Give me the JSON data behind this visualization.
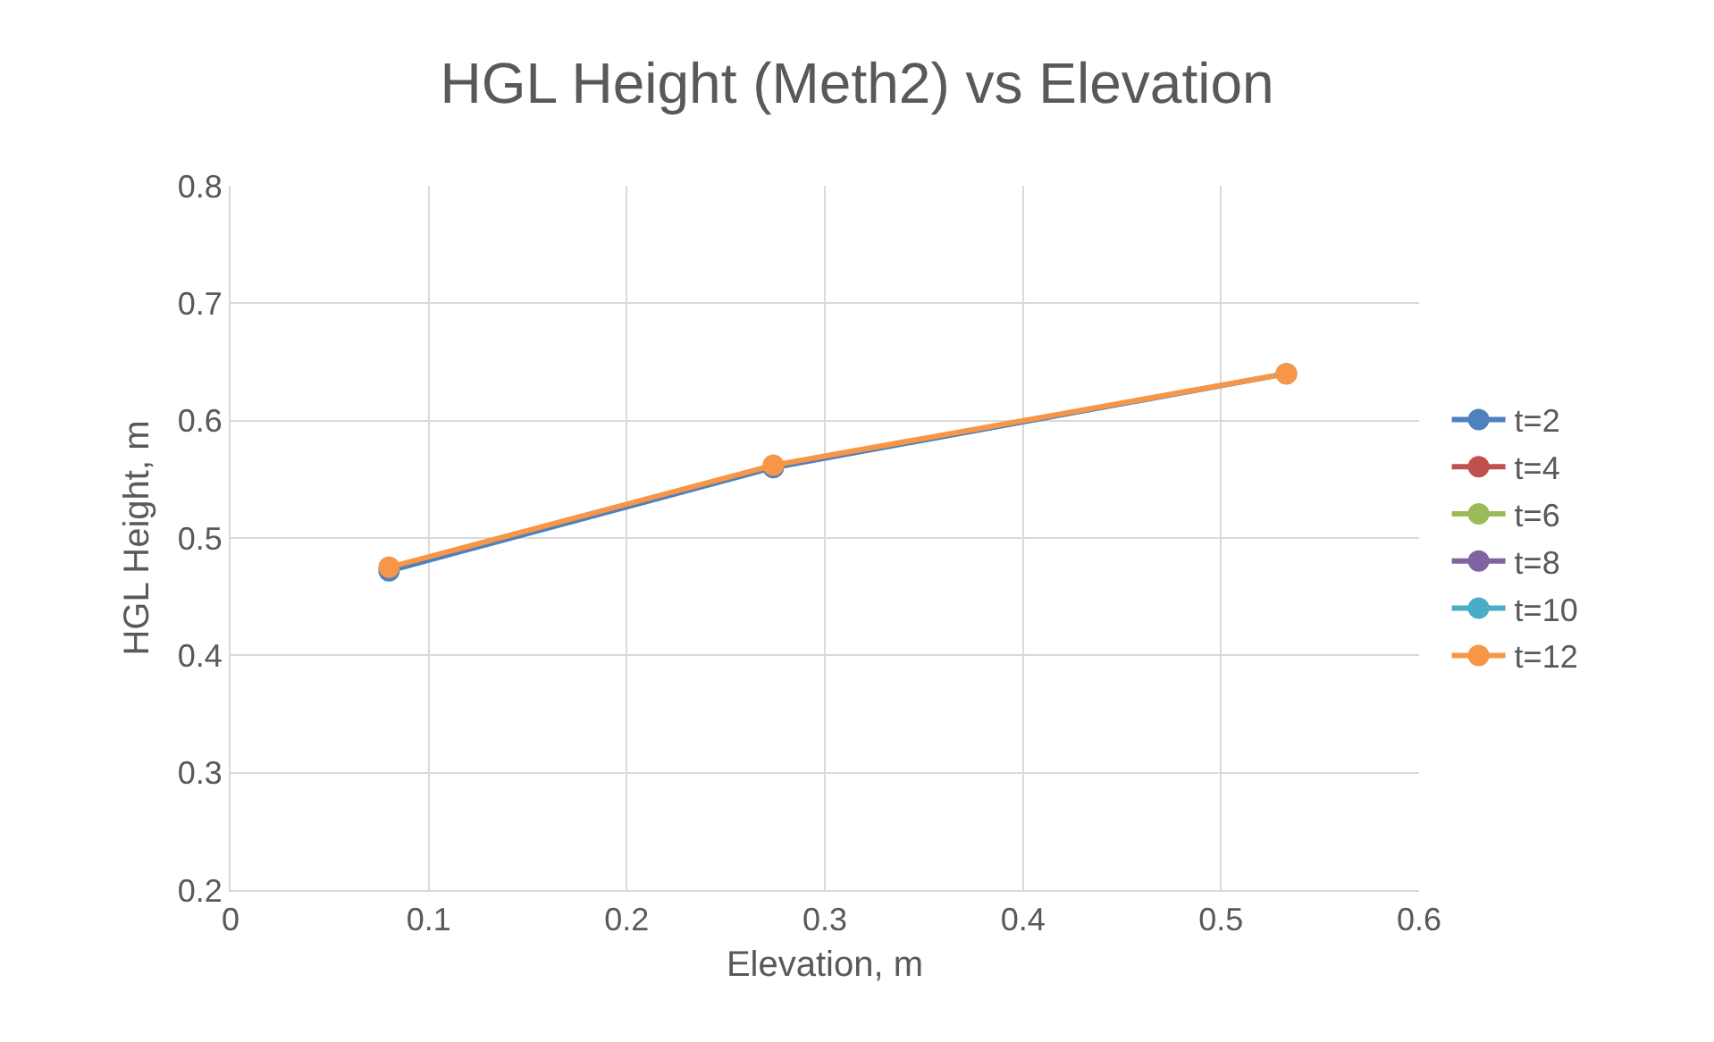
{
  "chart_data": {
    "type": "line",
    "title": "HGL Height (Meth2) vs Elevation",
    "xlabel": "Elevation, m",
    "ylabel": "HGL Height, m",
    "x": [
      0.08,
      0.274,
      0.533
    ],
    "series": [
      {
        "name": "t=2",
        "color": "#4f81bd",
        "values": [
          0.472,
          0.56,
          0.64
        ]
      },
      {
        "name": "t=4",
        "color": "#c0504d",
        "values": [
          null,
          null,
          null
        ]
      },
      {
        "name": "t=6",
        "color": "#9bbb59",
        "values": [
          null,
          null,
          null
        ]
      },
      {
        "name": "t=8",
        "color": "#8064a2",
        "values": [
          null,
          null,
          null
        ]
      },
      {
        "name": "t=10",
        "color": "#4bacc6",
        "values": [
          null,
          null,
          null
        ]
      },
      {
        "name": "t=12",
        "color": "#f79646",
        "values": [
          0.475,
          0.562,
          0.64
        ]
      }
    ],
    "xlim": [
      0,
      0.6
    ],
    "xticks": [
      0,
      0.1,
      0.2,
      0.3,
      0.4,
      0.5,
      0.6
    ],
    "ylim": [
      0.2,
      0.8
    ],
    "yticks": [
      0.2,
      0.3,
      0.4,
      0.5,
      0.6,
      0.7,
      0.8
    ],
    "grid": true,
    "legend": "right",
    "marker": "circle",
    "line_style": "solid"
  }
}
